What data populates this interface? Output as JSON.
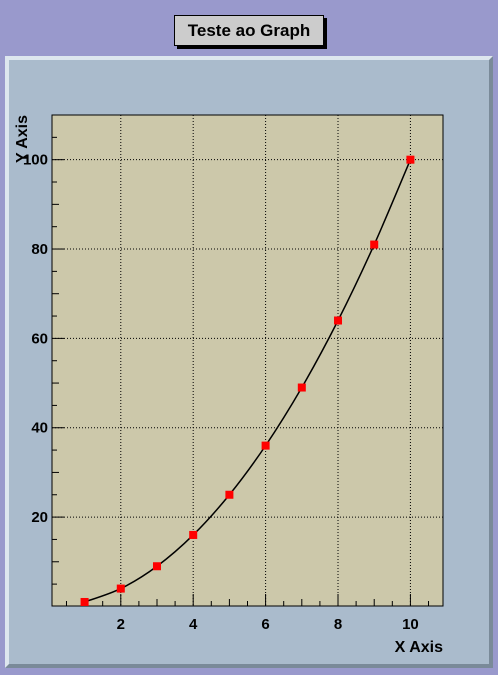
{
  "title": "Teste ao Graph",
  "colors": {
    "canvas_bg": "#9999cc",
    "pad_bg": "#aabbcc",
    "frame_bg": "#ccc8aa",
    "marker": "#ff0000",
    "line": "#000000",
    "title_box_bg": "#cccccc"
  },
  "chart_data": {
    "type": "line",
    "title": "Teste ao Graph",
    "xlabel": "X Axis",
    "ylabel": "Y Axis",
    "xlim": [
      0.1,
      10.9
    ],
    "ylim": [
      0.1,
      110
    ],
    "x_ticks": [
      2,
      4,
      6,
      8,
      10
    ],
    "y_ticks": [
      20,
      40,
      60,
      80,
      100
    ],
    "grid": true,
    "x": [
      1,
      2,
      3,
      4,
      5,
      6,
      7,
      8,
      9,
      10
    ],
    "y": [
      1,
      4,
      9,
      16,
      25,
      36,
      49,
      64,
      81,
      100
    ],
    "marker": "square",
    "line_style": "smooth"
  }
}
